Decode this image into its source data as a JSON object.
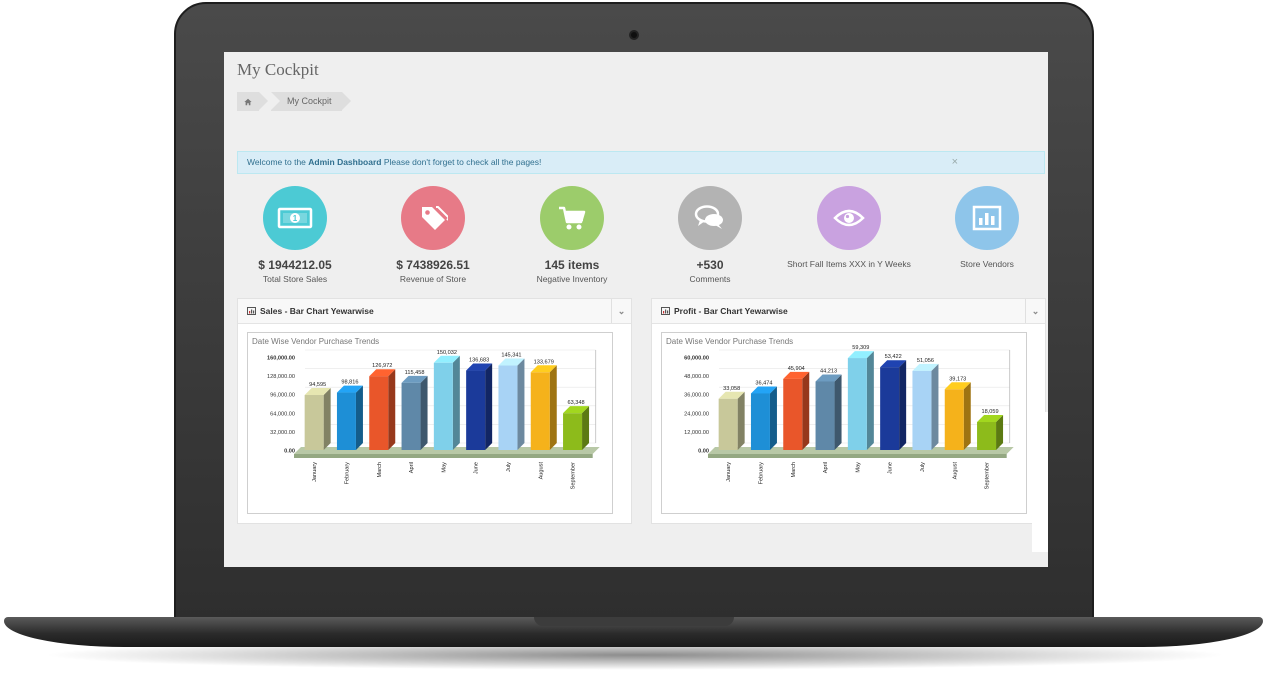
{
  "page": {
    "title": "My Cockpit"
  },
  "breadcrumb": {
    "home_icon": "home-icon",
    "items": [
      "My Cockpit"
    ]
  },
  "alert": {
    "prefix": "Welcome to the ",
    "strong": "Admin Dashboard",
    "suffix": " Please don't forget to check all the pages!",
    "close": "×"
  },
  "stats": [
    {
      "value": "$ 1944212.05",
      "label": "Total Store Sales",
      "icon": "money-icon",
      "color": "#4ccad4"
    },
    {
      "value": "$ 7438926.51",
      "label": "Revenue of Store",
      "icon": "tag-icon",
      "color": "#e77a87"
    },
    {
      "value": "145 items",
      "label": "Negative Inventory",
      "icon": "cart-icon",
      "color": "#9ccc6b"
    },
    {
      "value": "+530",
      "label": "Comments",
      "icon": "comments-icon",
      "color": "#b3b3b3"
    },
    {
      "value": "",
      "label": "Short Fall Items XXX in Y Weeks",
      "icon": "eye-icon",
      "color": "#c9a2e0"
    },
    {
      "value": "",
      "label": "Store Vendors",
      "icon": "bar-chart-icon",
      "color": "#8ec5ea"
    }
  ],
  "panels": [
    {
      "title": "Sales - Bar Chart Yewarwise",
      "toggle": "⌄"
    },
    {
      "title": "Profit - Bar Chart Yewarwise",
      "toggle": "⌄"
    }
  ],
  "colors": [
    "#c8c89a",
    "#1e8fd6",
    "#e9562a",
    "#5f88a8",
    "#7fd0ea",
    "#1b3a9a",
    "#a8d3f5",
    "#f5b21b",
    "#8dbb1b"
  ],
  "chart_data": [
    {
      "type": "bar",
      "title": "Date Wise Vendor Purchase Trends",
      "categories": [
        "January",
        "February",
        "March",
        "April",
        "May",
        "June",
        "July",
        "August",
        "September"
      ],
      "values": [
        94595,
        98816,
        126972,
        115458,
        150032,
        136683,
        145341,
        133679,
        63348
      ],
      "value_labels": [
        "94,595",
        "98,816",
        "126,972",
        "115,458",
        "150,032",
        "136,683",
        "145,341",
        "133,679",
        "63,348"
      ],
      "yticks": [
        "0.00",
        "32,000.00",
        "64,000.00",
        "96,000.00",
        "128,000.00",
        "160,000.00"
      ],
      "ylim": [
        0,
        160000
      ]
    },
    {
      "type": "bar",
      "title": "Date Wise Vendor Purchase Trends",
      "categories": [
        "January",
        "February",
        "March",
        "April",
        "May",
        "June",
        "July",
        "August",
        "September"
      ],
      "values": [
        33058,
        36474,
        45904,
        44213,
        59309,
        53422,
        51056,
        39173,
        18059
      ],
      "value_labels": [
        "33,058",
        "36,474",
        "45,904",
        "44,213",
        "59,309",
        "53,422",
        "51,056",
        "39,173",
        "18,059"
      ],
      "yticks": [
        "0.00",
        "12,000.00",
        "24,000.00",
        "36,000.00",
        "48,000.00",
        "60,000.00"
      ],
      "ylim": [
        0,
        60000
      ]
    }
  ]
}
